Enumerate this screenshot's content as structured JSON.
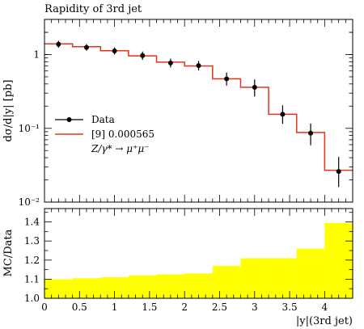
{
  "chart_data": [
    {
      "type": "line",
      "title": "Rapidity of 3rd jet",
      "ylabel": "dσ/d|y| [pb]",
      "xlabel": "",
      "yscale": "log",
      "xlim": [
        0,
        4.4
      ],
      "ylim": [
        0.01,
        3
      ],
      "yticks": [
        {
          "value": 1,
          "label": "1"
        },
        {
          "value": 0.1,
          "label": "10⁻¹"
        },
        {
          "value": 0.01,
          "label": "10⁻²"
        }
      ],
      "bin_edges": [
        0,
        0.4,
        0.8,
        1.2,
        1.6,
        2.0,
        2.4,
        2.8,
        3.2,
        3.6,
        4.0,
        4.4
      ],
      "series": [
        {
          "name": "Data",
          "kind": "points",
          "color": "#000000",
          "x": [
            0.2,
            0.6,
            1.0,
            1.4,
            1.8,
            2.2,
            2.6,
            3.0,
            3.4,
            3.8,
            4.2
          ],
          "values": [
            1.38,
            1.25,
            1.12,
            0.97,
            0.77,
            0.71,
            0.47,
            0.36,
            0.155,
            0.086,
            0.026
          ],
          "err_low": [
            0.14,
            0.12,
            0.12,
            0.12,
            0.1,
            0.1,
            0.09,
            0.09,
            0.04,
            0.027,
            0.01
          ],
          "err_high": [
            0.16,
            0.14,
            0.13,
            0.13,
            0.11,
            0.11,
            0.1,
            0.1,
            0.05,
            0.03,
            0.015
          ]
        },
        {
          "name": "[9] 0.000565",
          "kind": "step",
          "color": "#e8331c",
          "values": [
            1.4,
            1.28,
            1.13,
            0.96,
            0.79,
            0.7,
            0.47,
            0.36,
            0.155,
            0.088,
            0.027
          ]
        }
      ],
      "legend": {
        "position": "middle-left",
        "process": "Z/γ* → μ⁺μ⁻"
      }
    },
    {
      "type": "area",
      "xlabel": "|y|(3rd jet)",
      "ylabel": "MC/Data",
      "xlim": [
        0,
        4.4
      ],
      "ylim": [
        1.0,
        1.47
      ],
      "xticks": [
        0,
        0.5,
        1,
        1.5,
        2,
        2.5,
        3,
        3.5,
        4
      ],
      "xtick_labels": [
        "0",
        "0.5",
        "1",
        "1.5",
        "2",
        "2.5",
        "3",
        "3.5",
        "4"
      ],
      "yticks": [
        1.0,
        1.1,
        1.2,
        1.3,
        1.4
      ],
      "ytick_labels": [
        "1.0",
        "1.1",
        "1.2",
        "1.3",
        "1.4"
      ],
      "bin_edges": [
        0,
        0.4,
        0.8,
        1.2,
        1.6,
        2.0,
        2.4,
        2.8,
        3.2,
        3.6,
        4.0,
        4.4
      ],
      "values": [
        1.1,
        1.105,
        1.11,
        1.12,
        1.125,
        1.13,
        1.17,
        1.21,
        1.21,
        1.26,
        1.395
      ],
      "fill_color": "#ffff00"
    }
  ]
}
